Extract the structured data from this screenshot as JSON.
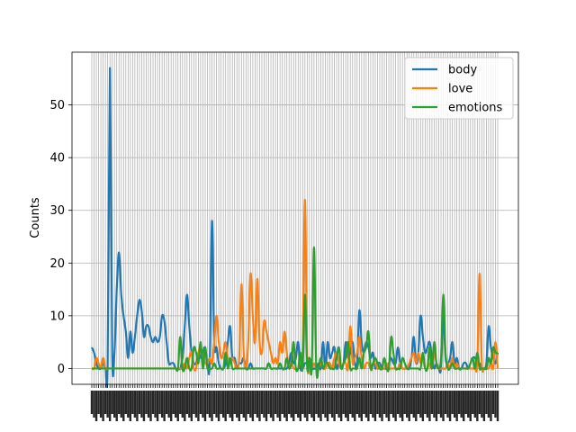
{
  "chart_data": {
    "type": "line",
    "title": "",
    "xlabel": "",
    "ylabel": "Counts",
    "ylim": [
      -3,
      60
    ],
    "yticks": [
      0,
      10,
      20,
      30,
      40,
      50
    ],
    "x_count": 180,
    "grid": true,
    "legend_position": "top-right",
    "series": [
      {
        "name": "body",
        "color": "#1f77b4",
        "values": [
          4,
          3,
          1,
          0,
          0,
          1,
          0,
          1,
          57,
          3,
          3,
          15,
          22,
          14,
          10,
          7,
          2,
          7,
          3,
          6,
          10,
          13,
          11,
          6,
          8,
          8,
          6,
          5,
          6,
          5,
          6,
          10,
          9,
          5,
          1,
          1,
          1,
          0,
          0,
          0,
          2,
          8,
          14,
          8,
          3,
          1,
          1,
          3,
          2,
          3,
          4,
          1,
          1,
          28,
          5,
          4,
          1,
          0,
          0,
          1,
          5,
          8,
          2,
          2,
          0,
          1,
          1,
          2,
          0,
          0,
          1,
          0,
          0,
          0,
          0,
          0,
          0,
          0,
          1,
          0,
          0,
          0,
          0,
          0,
          0,
          0,
          0,
          1,
          3,
          1,
          2,
          5,
          0,
          0,
          1,
          1,
          2,
          0,
          0,
          0,
          1,
          0,
          5,
          0,
          5,
          2,
          3,
          4,
          0,
          1,
          0,
          1,
          5,
          2,
          3,
          5,
          1,
          1,
          11,
          5,
          3,
          5,
          4,
          2,
          3,
          0,
          1,
          1,
          0,
          0,
          0,
          1,
          2,
          1,
          1,
          4,
          1,
          0,
          0,
          0,
          0,
          2,
          6,
          1,
          3,
          10,
          6,
          3,
          4,
          5,
          2,
          0,
          1,
          0,
          0,
          10,
          2,
          1,
          2,
          5,
          1,
          2,
          0,
          0,
          1,
          1,
          0,
          1,
          2,
          2,
          1,
          1,
          0,
          0,
          1,
          8,
          4,
          2,
          1,
          3
        ]
      },
      {
        "name": "love",
        "color": "#ff7f0e",
        "values": [
          0,
          0,
          2,
          1,
          0,
          2,
          0,
          0,
          0,
          0,
          0,
          0,
          0,
          0,
          0,
          0,
          0,
          0,
          0,
          0,
          0,
          0,
          0,
          0,
          0,
          0,
          0,
          0,
          0,
          0,
          0,
          0,
          0,
          0,
          0,
          0,
          0,
          0,
          0,
          0,
          0,
          1,
          0,
          2,
          3,
          0,
          0,
          3,
          4,
          2,
          1,
          1,
          2,
          1,
          5,
          10,
          5,
          2,
          3,
          5,
          2,
          1,
          2,
          1,
          0,
          2,
          16,
          3,
          0,
          5,
          18,
          10,
          5,
          17,
          5,
          3,
          9,
          7,
          5,
          3,
          1,
          2,
          1,
          5,
          3,
          7,
          3,
          0,
          1,
          0,
          0,
          0,
          2,
          4,
          32,
          2,
          0,
          0,
          1,
          0,
          0,
          1,
          0,
          0,
          1,
          1,
          0,
          2,
          3,
          1,
          0,
          1,
          1,
          0,
          8,
          1,
          2,
          3,
          6,
          2,
          0,
          1,
          1,
          0,
          1,
          1,
          0,
          0,
          0,
          0,
          1,
          0,
          0,
          0,
          0,
          0,
          1,
          0,
          0,
          0,
          1,
          2,
          3,
          1,
          3,
          1,
          2,
          0,
          0,
          1,
          0,
          3,
          1,
          0,
          0,
          0,
          0,
          1,
          0,
          2,
          0,
          1,
          0,
          0,
          0,
          0,
          0,
          0,
          0,
          0,
          1,
          18,
          1,
          0,
          0,
          0,
          1,
          0,
          5,
          0
        ]
      },
      {
        "name": "emotions",
        "color": "#2ca02c",
        "values": [
          0,
          0,
          0,
          0,
          0,
          0,
          0,
          0,
          0,
          0,
          0,
          0,
          0,
          0,
          0,
          0,
          0,
          0,
          0,
          0,
          0,
          0,
          0,
          0,
          0,
          0,
          0,
          0,
          0,
          0,
          0,
          0,
          0,
          0,
          0,
          0,
          0,
          0,
          0,
          6,
          0,
          0,
          2,
          0,
          0,
          4,
          3,
          1,
          5,
          0,
          4,
          0,
          0,
          0,
          1,
          0,
          0,
          0,
          0,
          3,
          0,
          2,
          0,
          0,
          0,
          0,
          0,
          0,
          0,
          0,
          0,
          0,
          0,
          0,
          0,
          0,
          0,
          0,
          1,
          0,
          0,
          0,
          0,
          1,
          0,
          0,
          2,
          0,
          1,
          5,
          0,
          0,
          3,
          0,
          14,
          0,
          2,
          0,
          23,
          0,
          0,
          2,
          0,
          1,
          1,
          0,
          0,
          0,
          2,
          4,
          0,
          1,
          2,
          5,
          0,
          0,
          0,
          0,
          2,
          0,
          3,
          4,
          7,
          0,
          1,
          2,
          1,
          0,
          0,
          2,
          0,
          0,
          6,
          3,
          0,
          0,
          0,
          2,
          1,
          0,
          0,
          0,
          0,
          0,
          0,
          0,
          3,
          0,
          0,
          4,
          0,
          5,
          1,
          0,
          2,
          14,
          3,
          0,
          0,
          1,
          0,
          0,
          0,
          0,
          0,
          0,
          0,
          1,
          2,
          0,
          3,
          0,
          0,
          0,
          0,
          2,
          1,
          4,
          3,
          3
        ]
      }
    ]
  }
}
